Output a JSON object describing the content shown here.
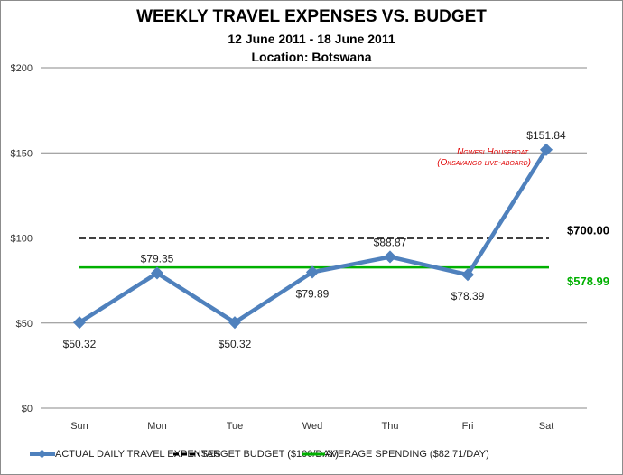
{
  "title": "WEEKLY TRAVEL EXPENSES VS. BUDGET",
  "subtitle": "12 June 2011 - 18 June 2011",
  "location": "Location: Botswana",
  "annotation": {
    "line1": "Ngwesi Houseboat",
    "line2": "(Oksavango live-aboard)",
    "color": "#e00000"
  },
  "totals": {
    "budget": "$700.00",
    "average": "$578.99"
  },
  "legend": {
    "actual": "ACTUAL DAILY TRAVEL EXPENSES",
    "target": "TARGET BUDGET ($100/DAY)",
    "average": "AVERAGE SPENDING ($82.71/DAY)"
  },
  "colors": {
    "actual": "#4f81bd",
    "target": "#000000",
    "average": "#00b000",
    "grid": "#888888"
  },
  "chart_data": {
    "type": "line",
    "title": "WEEKLY TRAVEL EXPENSES VS. BUDGET",
    "subtitle": "12 June 2011 - 18 June 2011 / Location: Botswana",
    "categories": [
      "Sun",
      "Mon",
      "Tue",
      "Wed",
      "Thu",
      "Fri",
      "Sat"
    ],
    "series": [
      {
        "name": "ACTUAL DAILY TRAVEL EXPENSES",
        "values": [
          50.32,
          79.35,
          50.32,
          79.89,
          88.87,
          78.39,
          151.84
        ],
        "labels": [
          "$50.32",
          "$79.35",
          "$50.32",
          "$79.89",
          "$88.87",
          "$78.39",
          "$151.84"
        ]
      },
      {
        "name": "TARGET BUDGET ($100/DAY)",
        "values": [
          100,
          100,
          100,
          100,
          100,
          100,
          100
        ]
      },
      {
        "name": "AVERAGE SPENDING ($82.71/DAY)",
        "values": [
          82.71,
          82.71,
          82.71,
          82.71,
          82.71,
          82.71,
          82.71
        ]
      }
    ],
    "yticks": [
      "$0",
      "$50",
      "$100",
      "$150",
      "$200"
    ],
    "ylim": [
      0,
      200
    ],
    "grid": true,
    "legend_position": "bottom",
    "xlabel": "",
    "ylabel": ""
  }
}
